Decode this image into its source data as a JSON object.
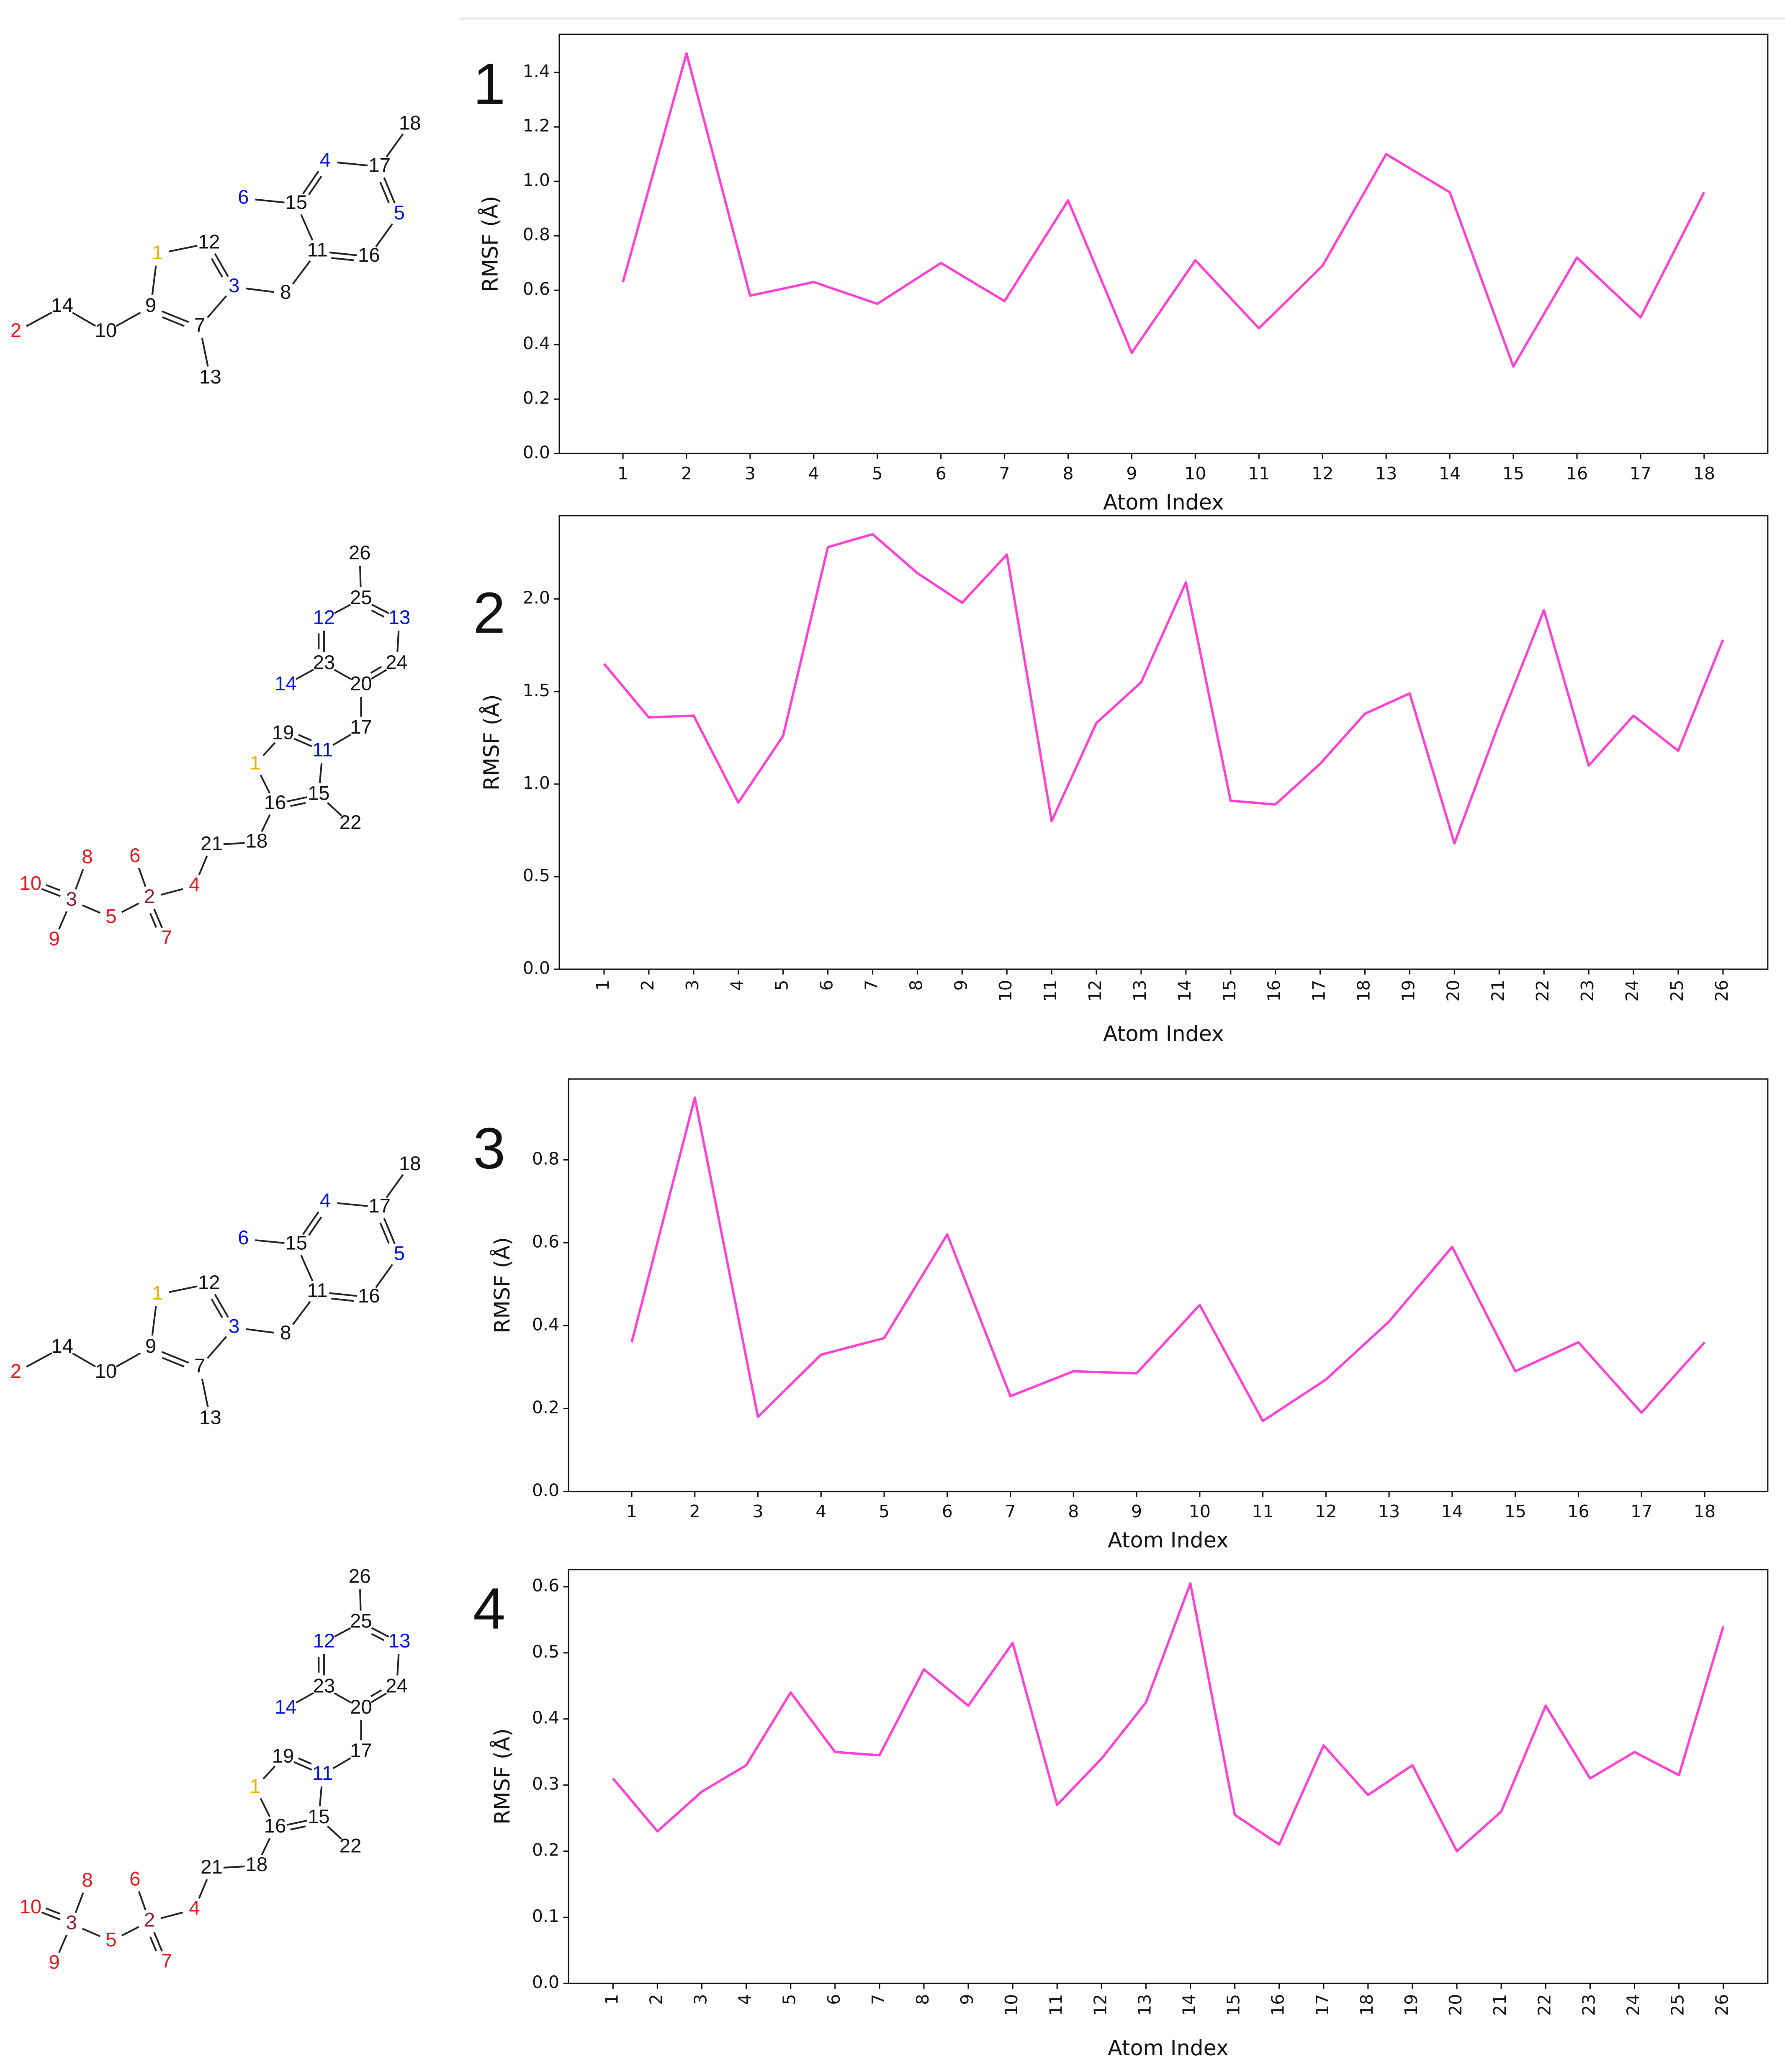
{
  "chart_data": [
    {
      "type": "line",
      "title": "1",
      "x_label": "Atom Index",
      "y_label": "RMSF (Å)",
      "color": "#ff3fd2",
      "x": [
        1,
        2,
        3,
        4,
        5,
        6,
        7,
        8,
        9,
        10,
        11,
        12,
        13,
        14,
        15,
        16,
        17,
        18
      ],
      "values": [
        0.63,
        1.47,
        0.58,
        0.63,
        0.55,
        0.7,
        0.56,
        0.93,
        0.37,
        0.71,
        0.46,
        0.69,
        1.1,
        0.96,
        0.32,
        0.72,
        0.5,
        0.96
      ],
      "xlim": [
        0,
        19
      ],
      "ylim": [
        0,
        1.54
      ],
      "xticks": [
        1,
        2,
        3,
        4,
        5,
        6,
        7,
        8,
        9,
        10,
        11,
        12,
        13,
        14,
        15,
        16,
        17,
        18
      ],
      "yticks": [
        {
          "value": 0,
          "label": "0.0"
        },
        0.2,
        0.4,
        0.6,
        0.8,
        {
          "value": 1,
          "label": "1.0"
        },
        1.2,
        1.4
      ],
      "xtick_rotation": 0,
      "grid": false
    },
    {
      "type": "line",
      "title": "2",
      "x_label": "Atom Index",
      "y_label": "RMSF (Å)",
      "color": "#ff3fd2",
      "x": [
        1,
        2,
        3,
        4,
        5,
        6,
        7,
        8,
        9,
        10,
        11,
        12,
        13,
        14,
        15,
        16,
        17,
        18,
        19,
        20,
        21,
        22,
        23,
        24,
        25,
        26
      ],
      "values": [
        1.65,
        1.36,
        1.37,
        0.9,
        1.26,
        2.28,
        2.35,
        2.14,
        1.98,
        2.24,
        0.8,
        1.33,
        1.55,
        2.09,
        0.91,
        0.89,
        1.11,
        1.38,
        1.49,
        0.68,
        1.33,
        1.94,
        1.1,
        1.37,
        1.18,
        1.78
      ],
      "xlim": [
        0,
        27
      ],
      "ylim": [
        0,
        2.45
      ],
      "xticks": [
        1,
        2,
        3,
        4,
        5,
        6,
        7,
        8,
        9,
        10,
        11,
        12,
        13,
        14,
        15,
        16,
        17,
        18,
        19,
        20,
        21,
        22,
        23,
        24,
        25,
        26
      ],
      "yticks": [
        {
          "value": 0,
          "label": "0.0"
        },
        0.5,
        {
          "value": 1,
          "label": "1.0"
        },
        1.5,
        {
          "value": 2,
          "label": "2.0"
        }
      ],
      "xtick_rotation": -90,
      "grid": false
    },
    {
      "type": "line",
      "title": "3",
      "x_label": "Atom Index",
      "y_label": "RMSF (Å)",
      "color": "#ff3fd2",
      "x": [
        1,
        2,
        3,
        4,
        5,
        6,
        7,
        8,
        9,
        10,
        11,
        12,
        13,
        14,
        15,
        16,
        17,
        18
      ],
      "values": [
        0.36,
        0.95,
        0.18,
        0.33,
        0.37,
        0.62,
        0.23,
        0.29,
        0.285,
        0.45,
        0.17,
        0.27,
        0.41,
        0.59,
        0.29,
        0.36,
        0.19,
        0.36
      ],
      "xlim": [
        0,
        19
      ],
      "ylim": [
        0,
        0.995
      ],
      "xticks": [
        1,
        2,
        3,
        4,
        5,
        6,
        7,
        8,
        9,
        10,
        11,
        12,
        13,
        14,
        15,
        16,
        17,
        18
      ],
      "yticks": [
        {
          "value": 0,
          "label": "0.0"
        },
        0.2,
        0.4,
        0.6,
        0.8
      ],
      "xtick_rotation": 0,
      "grid": false
    },
    {
      "type": "line",
      "title": "4",
      "x_label": "Atom Index",
      "y_label": "RMSF (Å)",
      "color": "#ff3fd2",
      "x": [
        1,
        2,
        3,
        4,
        5,
        6,
        7,
        8,
        9,
        10,
        11,
        12,
        13,
        14,
        15,
        16,
        17,
        18,
        19,
        20,
        21,
        22,
        23,
        24,
        25,
        26
      ],
      "values": [
        0.31,
        0.23,
        0.29,
        0.33,
        0.44,
        0.35,
        0.345,
        0.475,
        0.42,
        0.515,
        0.27,
        0.34,
        0.425,
        0.605,
        0.255,
        0.21,
        0.36,
        0.285,
        0.33,
        0.2,
        0.26,
        0.42,
        0.31,
        0.35,
        0.315,
        0.54
      ],
      "xlim": [
        0,
        27
      ],
      "ylim": [
        0,
        0.626
      ],
      "xticks": [
        1,
        2,
        3,
        4,
        5,
        6,
        7,
        8,
        9,
        10,
        11,
        12,
        13,
        14,
        15,
        16,
        17,
        18,
        19,
        20,
        21,
        22,
        23,
        24,
        25,
        26
      ],
      "yticks": [
        {
          "value": 0,
          "label": "0.0"
        },
        0.1,
        0.2,
        0.3,
        0.4,
        0.5,
        0.6
      ],
      "xtick_rotation": -90,
      "grid": false
    }
  ],
  "molecules": [
    {
      "atoms": [
        {
          "label": "1",
          "color": "#f0b000"
        },
        {
          "label": "12",
          "color": "#111111"
        },
        {
          "label": "3",
          "color": "#0010e0"
        },
        {
          "label": "9",
          "color": "#111111"
        },
        {
          "label": "7",
          "color": "#111111"
        },
        {
          "label": "13",
          "color": "#111111"
        },
        {
          "label": "10",
          "color": "#111111"
        },
        {
          "label": "14",
          "color": "#111111"
        },
        {
          "label": "2",
          "color": "#e8141c"
        },
        {
          "label": "8",
          "color": "#111111"
        },
        {
          "label": "11",
          "color": "#111111"
        },
        {
          "label": "15",
          "color": "#111111"
        },
        {
          "label": "6",
          "color": "#0010e0"
        },
        {
          "label": "4",
          "color": "#0010e0"
        },
        {
          "label": "17",
          "color": "#111111"
        },
        {
          "label": "18",
          "color": "#111111"
        },
        {
          "label": "5",
          "color": "#0010e0"
        },
        {
          "label": "16",
          "color": "#111111"
        }
      ]
    },
    {
      "atoms": [
        {
          "label": "26",
          "color": "#111111"
        },
        {
          "label": "25",
          "color": "#111111"
        },
        {
          "label": "12",
          "color": "#0010e0"
        },
        {
          "label": "13",
          "color": "#0010e0"
        },
        {
          "label": "23",
          "color": "#111111"
        },
        {
          "label": "24",
          "color": "#111111"
        },
        {
          "label": "20",
          "color": "#111111"
        },
        {
          "label": "14",
          "color": "#0010e0"
        },
        {
          "label": "17",
          "color": "#111111"
        },
        {
          "label": "19",
          "color": "#111111"
        },
        {
          "label": "11",
          "color": "#0010e0"
        },
        {
          "label": "1",
          "color": "#f0b000"
        },
        {
          "label": "16",
          "color": "#111111"
        },
        {
          "label": "15",
          "color": "#111111"
        },
        {
          "label": "22",
          "color": "#111111"
        },
        {
          "label": "18",
          "color": "#111111"
        },
        {
          "label": "21",
          "color": "#111111"
        },
        {
          "label": "4",
          "color": "#e8141c"
        },
        {
          "label": "6",
          "color": "#e8141c"
        },
        {
          "label": "2",
          "color": "#8b1a2a"
        },
        {
          "label": "7",
          "color": "#e8141c"
        },
        {
          "label": "5",
          "color": "#e8141c"
        },
        {
          "label": "3",
          "color": "#8b1a2a"
        },
        {
          "label": "10",
          "color": "#e8141c"
        },
        {
          "label": "8",
          "color": "#e8141c"
        },
        {
          "label": "9",
          "color": "#e8141c"
        }
      ]
    },
    {
      "atoms": [
        {
          "label": "1",
          "color": "#f0b000"
        },
        {
          "label": "12",
          "color": "#111111"
        },
        {
          "label": "3",
          "color": "#0010e0"
        },
        {
          "label": "9",
          "color": "#111111"
        },
        {
          "label": "7",
          "color": "#111111"
        },
        {
          "label": "13",
          "color": "#111111"
        },
        {
          "label": "10",
          "color": "#111111"
        },
        {
          "label": "14",
          "color": "#111111"
        },
        {
          "label": "2",
          "color": "#e8141c"
        },
        {
          "label": "8",
          "color": "#111111"
        },
        {
          "label": "11",
          "color": "#111111"
        },
        {
          "label": "15",
          "color": "#111111"
        },
        {
          "label": "6",
          "color": "#0010e0"
        },
        {
          "label": "4",
          "color": "#0010e0"
        },
        {
          "label": "17",
          "color": "#111111"
        },
        {
          "label": "18",
          "color": "#111111"
        },
        {
          "label": "5",
          "color": "#0010e0"
        },
        {
          "label": "16",
          "color": "#111111"
        }
      ]
    },
    {
      "atoms": [
        {
          "label": "26",
          "color": "#111111"
        },
        {
          "label": "25",
          "color": "#111111"
        },
        {
          "label": "12",
          "color": "#0010e0"
        },
        {
          "label": "13",
          "color": "#0010e0"
        },
        {
          "label": "23",
          "color": "#111111"
        },
        {
          "label": "24",
          "color": "#111111"
        },
        {
          "label": "20",
          "color": "#111111"
        },
        {
          "label": "14",
          "color": "#0010e0"
        },
        {
          "label": "17",
          "color": "#111111"
        },
        {
          "label": "19",
          "color": "#111111"
        },
        {
          "label": "11",
          "color": "#0010e0"
        },
        {
          "label": "1",
          "color": "#f0b000"
        },
        {
          "label": "16",
          "color": "#111111"
        },
        {
          "label": "15",
          "color": "#111111"
        },
        {
          "label": "22",
          "color": "#111111"
        },
        {
          "label": "18",
          "color": "#111111"
        },
        {
          "label": "21",
          "color": "#111111"
        },
        {
          "label": "4",
          "color": "#e8141c"
        },
        {
          "label": "6",
          "color": "#e8141c"
        },
        {
          "label": "2",
          "color": "#8b1a2a"
        },
        {
          "label": "7",
          "color": "#e8141c"
        },
        {
          "label": "5",
          "color": "#e8141c"
        },
        {
          "label": "3",
          "color": "#8b1a2a"
        },
        {
          "label": "10",
          "color": "#e8141c"
        },
        {
          "label": "8",
          "color": "#e8141c"
        },
        {
          "label": "9",
          "color": "#e8141c"
        }
      ]
    }
  ]
}
